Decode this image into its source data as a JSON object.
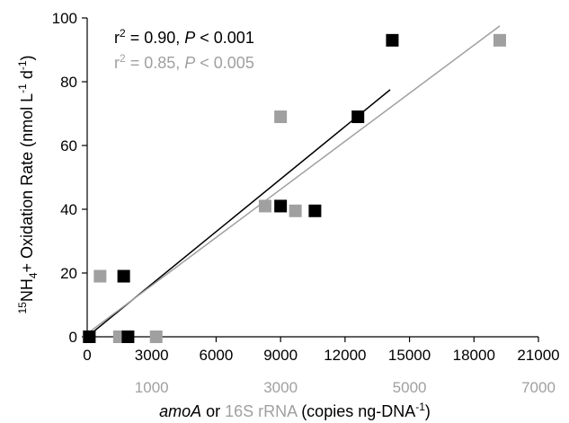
{
  "chart_data": {
    "type": "scatter",
    "title": "",
    "ylabel": {
      "sup1": "15",
      "part1": "NH",
      "sub": "4",
      "part2": "+ Oxidation Rate (nmol L",
      "sup2": "-1",
      "part3": " d",
      "sup3": "-1",
      "part4": ")"
    },
    "xlabel": {
      "italic": "amoA",
      "mid": " or ",
      "gray": "16S rRNA",
      "rest1": " (copies ng-DNA",
      "sup": "-1",
      "rest2": ")"
    },
    "ylim": [
      0,
      100
    ],
    "yticks": [
      "0",
      "20",
      "40",
      "60",
      "80",
      "100"
    ],
    "primary_x": {
      "lim": [
        0,
        21000
      ],
      "ticks": [
        "0",
        "3000",
        "6000",
        "9000",
        "12000",
        "15000",
        "18000",
        "21000"
      ]
    },
    "secondary_x": {
      "lim": [
        0,
        7000
      ],
      "ticks": [
        "1000",
        "3000",
        "5000",
        "7000"
      ],
      "tick_values": [
        1000,
        3000,
        5000,
        7000
      ],
      "color": "#a0a0a0"
    },
    "series": [
      {
        "name": "amoA",
        "color": "#000000",
        "axis": "primary",
        "points": [
          {
            "x": 100,
            "y": 0
          },
          {
            "x": 1700,
            "y": 19
          },
          {
            "x": 1900,
            "y": 0
          },
          {
            "x": 9000,
            "y": 41
          },
          {
            "x": 10600,
            "y": 39.5
          },
          {
            "x": 12600,
            "y": 69
          },
          {
            "x": 14200,
            "y": 93
          }
        ],
        "fit": {
          "x": [
            0,
            14100
          ],
          "y": [
            0,
            77.5
          ]
        },
        "annotation": {
          "r2": "0.90",
          "p": "< 0.001"
        }
      },
      {
        "name": "16S rRNA",
        "color": "#a0a0a0",
        "axis": "secondary",
        "points": [
          {
            "x": 30,
            "y": 0
          },
          {
            "x": 200,
            "y": 19
          },
          {
            "x": 500,
            "y": 0
          },
          {
            "x": 1070,
            "y": 0
          },
          {
            "x": 2760,
            "y": 41
          },
          {
            "x": 3000,
            "y": 69
          },
          {
            "x": 3230,
            "y": 39.5
          },
          {
            "x": 6400,
            "y": 93
          }
        ],
        "fit": {
          "x": [
            0,
            6400
          ],
          "y": [
            1,
            97.5
          ]
        },
        "annotation": {
          "r2": "0.85",
          "p": "< 0.005"
        }
      }
    ]
  }
}
